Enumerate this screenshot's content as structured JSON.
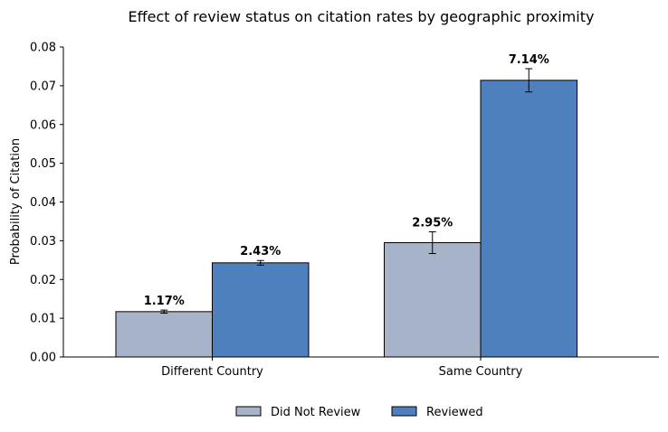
{
  "chart_data": {
    "type": "bar",
    "title": "Effect of review status on citation rates by geographic proximity",
    "xlabel": "",
    "ylabel": "Probability of Citation",
    "categories": [
      "Different Country",
      "Same Country"
    ],
    "ylim": [
      0,
      0.08
    ],
    "yticks": [
      0.0,
      0.01,
      0.02,
      0.03,
      0.04,
      0.05,
      0.06,
      0.07,
      0.08
    ],
    "ytick_labels": [
      "0.00",
      "0.01",
      "0.02",
      "0.03",
      "0.04",
      "0.05",
      "0.06",
      "0.07",
      "0.08"
    ],
    "grid": false,
    "legend_position": "bottom-center",
    "series": [
      {
        "name": "Did Not Review",
        "color": "#a6b3c9",
        "values": [
          0.0117,
          0.0295
        ],
        "errors": [
          0.0004,
          0.0028
        ],
        "data_labels": [
          "1.17%",
          "2.95%"
        ]
      },
      {
        "name": "Reviewed",
        "color": "#4d80bd",
        "values": [
          0.0243,
          0.0714
        ],
        "errors": [
          0.0006,
          0.003
        ],
        "data_labels": [
          "2.43%",
          "7.14%"
        ]
      }
    ]
  }
}
